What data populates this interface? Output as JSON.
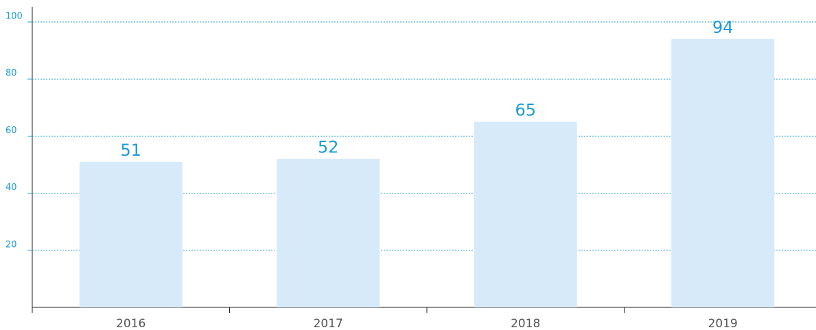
{
  "chart_data": {
    "type": "bar",
    "categories": [
      "2016",
      "2017",
      "2018",
      "2019"
    ],
    "values": [
      51,
      52,
      65,
      94
    ],
    "color": "#d6eaf9",
    "label_color": "#1a9cd8",
    "ylim": [
      0,
      100
    ],
    "yticks": [
      20,
      40,
      60,
      80,
      100
    ],
    "grid": true
  }
}
